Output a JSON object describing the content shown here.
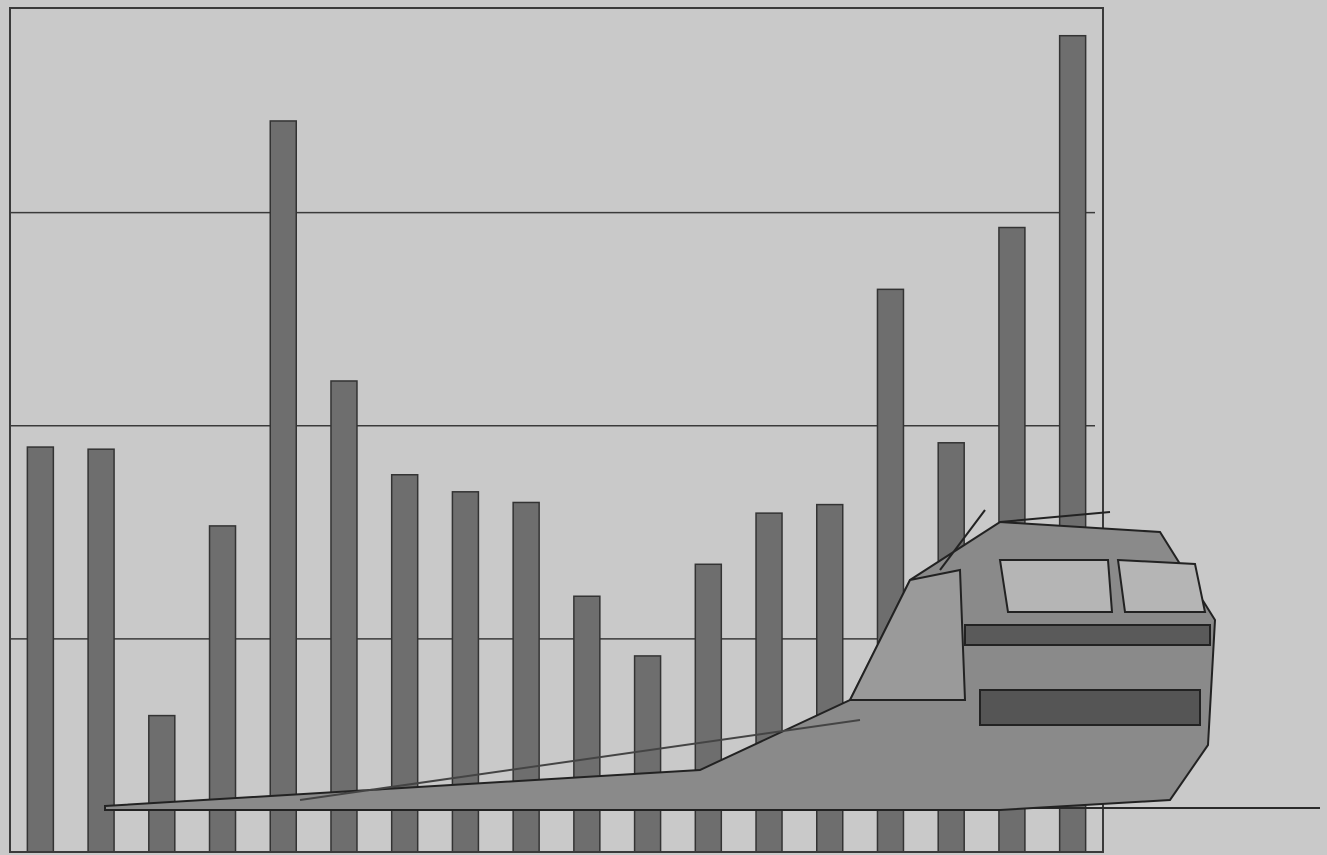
{
  "chart_data": {
    "type": "bar",
    "values": [
      1.9,
      1.89,
      0.64,
      1.53,
      3.43,
      2.21,
      1.77,
      1.69,
      1.64,
      1.2,
      0.92,
      1.35,
      1.59,
      1.63,
      2.64,
      1.92,
      2.93,
      3.83
    ],
    "color": "#6e6e6e",
    "ylim": [
      0,
      3.96
    ],
    "yticks": [
      1,
      2,
      3
    ],
    "grid": true
  }
}
